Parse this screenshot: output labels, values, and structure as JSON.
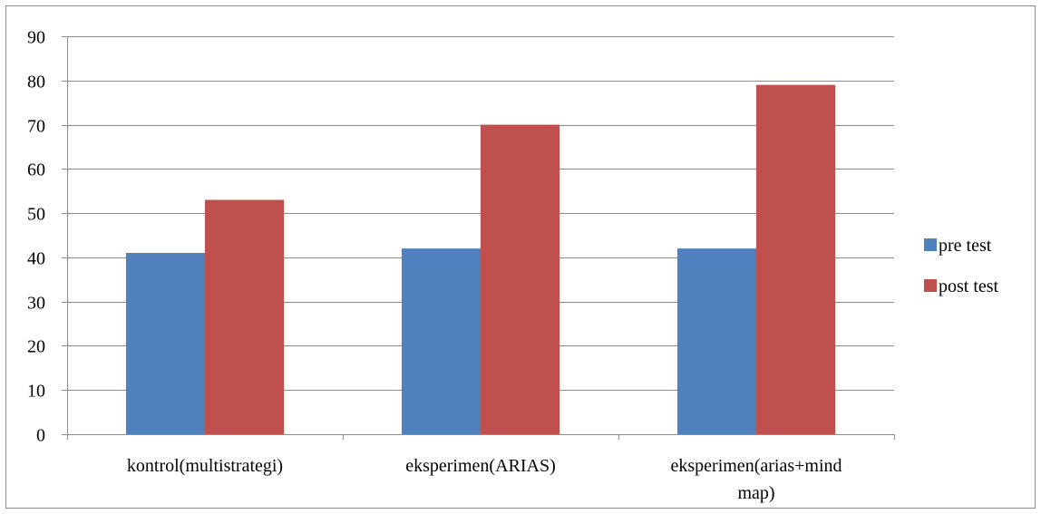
{
  "chart_data": {
    "type": "bar",
    "categories": [
      [
        "kontrol(multistrategi)"
      ],
      [
        "eksperimen(ARIAS)"
      ],
      [
        "eksperimen(arias+mind",
        "map)"
      ]
    ],
    "series": [
      {
        "name": "pre test",
        "color": "#4F81BD",
        "values": [
          41,
          42,
          42
        ]
      },
      {
        "name": "post test",
        "color": "#C0504D",
        "values": [
          53,
          70,
          79
        ]
      }
    ],
    "ylim": [
      0,
      90
    ],
    "yticks": [
      0,
      10,
      20,
      30,
      40,
      50,
      60,
      70,
      80,
      90
    ],
    "grid": true,
    "legend": "right",
    "title": "",
    "xlabel": "",
    "ylabel": ""
  }
}
